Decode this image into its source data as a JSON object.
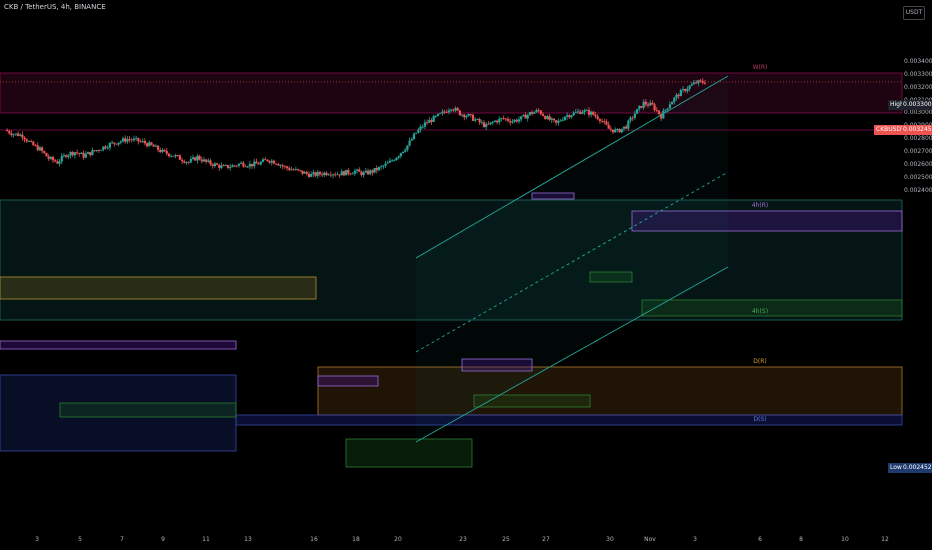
{
  "title": "CKB / TetherUS, 4h, BINANCE",
  "unit_badge": "USDT",
  "price_labels": {
    "high": {
      "label": "High",
      "value": "0.003300"
    },
    "current": {
      "label": "CKBUSDT",
      "value": "0.003245"
    },
    "low": {
      "label": "Low",
      "value": "0.002452"
    }
  },
  "colors": {
    "background": "#000000",
    "up": "#26a69a",
    "down": "#ef5350",
    "channel": "#26a69a",
    "resistance": "#880e4f",
    "current_price": "#ef5350"
  },
  "zone_labels": [
    {
      "text": "W(R)",
      "color": "#b83a6a"
    },
    {
      "text": "4h(R)",
      "color": "#9c6bd6"
    },
    {
      "text": "4h(S)",
      "color": "#4caf50"
    },
    {
      "text": "D(R)",
      "color": "#d69b3a"
    },
    {
      "text": "D(S)",
      "color": "#5a7be0"
    }
  ],
  "chart_data": {
    "type": "candlestick",
    "title": "CKB / TetherUS, 4h, BINANCE",
    "y_axis": {
      "unit": "USDT",
      "ticks": [
        "0.003400",
        "0.003300",
        "0.003200",
        "0.003100",
        "0.003000",
        "0.002900",
        "0.002800",
        "0.002700",
        "0.002600",
        "0.002500",
        "0.002400"
      ],
      "range": [
        0.00238,
        0.00354
      ]
    },
    "x_axis": {
      "ticks": [
        "3",
        "5",
        "7",
        "9",
        "11",
        "13",
        "16",
        "18",
        "20",
        "23",
        "25",
        "27",
        "30",
        "Nov",
        "3",
        "6",
        "8",
        "10",
        "12"
      ]
    },
    "close_path": [
      0.00287,
      0.00284,
      0.00283,
      0.00276,
      0.00272,
      0.00265,
      0.00262,
      0.00268,
      0.0027,
      0.00267,
      0.0027,
      0.00273,
      0.00276,
      0.00278,
      0.0028,
      0.00279,
      0.00277,
      0.00274,
      0.0027,
      0.00268,
      0.00265,
      0.00262,
      0.00266,
      0.00262,
      0.0026,
      0.00258,
      0.00259,
      0.00261,
      0.0026,
      0.00261,
      0.00264,
      0.00262,
      0.00258,
      0.00256,
      0.00254,
      0.00252,
      0.00253,
      0.00254,
      0.00253,
      0.00254,
      0.00255,
      0.00253,
      0.00255,
      0.00258,
      0.00262,
      0.00268,
      0.00275,
      0.00285,
      0.00292,
      0.00296,
      0.003,
      0.00305,
      0.003,
      0.00298,
      0.00294,
      0.0029,
      0.00294,
      0.00296,
      0.00294,
      0.00296,
      0.003,
      0.00302,
      0.00296,
      0.00292,
      0.00298,
      0.003,
      0.00302,
      0.003,
      0.00296,
      0.00288,
      0.00286,
      0.0029,
      0.003,
      0.00308,
      0.00306,
      0.00298,
      0.00308,
      0.00315,
      0.0032,
      0.00324,
      0.003245
    ],
    "current_price": 0.003245,
    "high": 0.0033,
    "low": 0.002452
  }
}
